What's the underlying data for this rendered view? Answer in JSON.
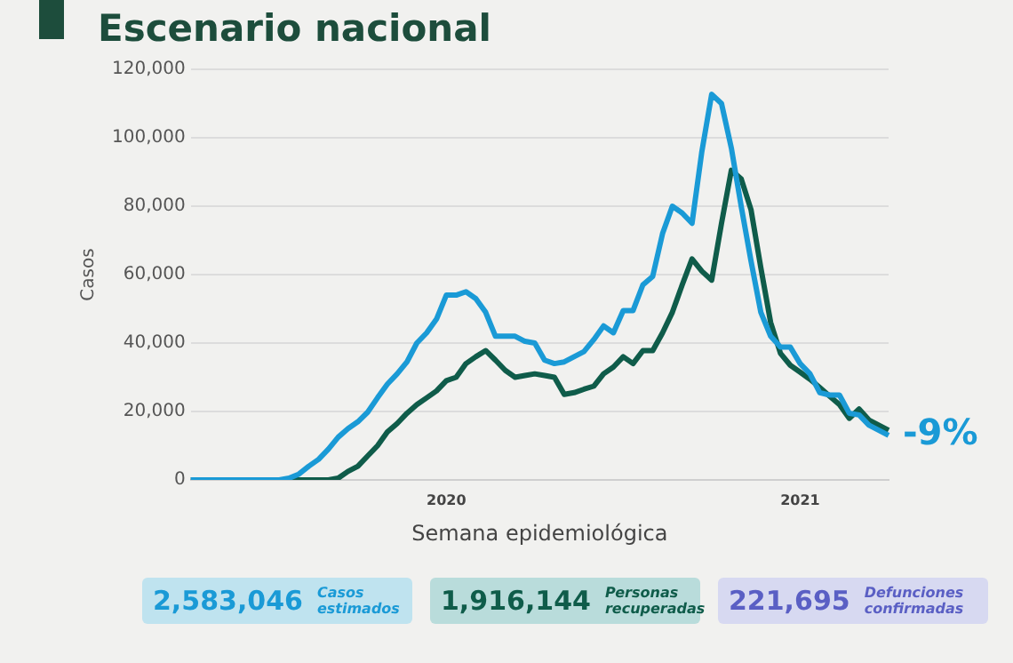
{
  "chart_data": {
    "type": "line",
    "title": "Escenario nacional",
    "xlabel": "Semana epidemiológica",
    "ylabel": "Casos",
    "categories": [
      null,
      null,
      null,
      null,
      null,
      null,
      null,
      null,
      null,
      null,
      null,
      null,
      null,
      null,
      null,
      null,
      null,
      null,
      null,
      null,
      null,
      null,
      null,
      null,
      null,
      null,
      "2020",
      null,
      null,
      null,
      null,
      null,
      null,
      null,
      null,
      null,
      null,
      null,
      null,
      null,
      null,
      null,
      null,
      null,
      null,
      null,
      null,
      null,
      null,
      null,
      null,
      null,
      null,
      null,
      null,
      null,
      null,
      null,
      null,
      null,
      null,
      null,
      "2021",
      null,
      null,
      null,
      null,
      null,
      null,
      null,
      null,
      null
    ],
    "series": [
      {
        "color": "#1a9ad6",
        "values": [
          0,
          0,
          0,
          0,
          0,
          0,
          0,
          0,
          0,
          0,
          500,
          1700,
          4000,
          6000,
          9000,
          12500,
          15000,
          17000,
          19800,
          24000,
          28000,
          31000,
          34500,
          40000,
          43000,
          47000,
          54000,
          54000,
          55000,
          53000,
          49000,
          42000,
          42000,
          42000,
          40500,
          40000,
          35000,
          34000,
          34500,
          36000,
          37500,
          41000,
          45000,
          43000,
          49500,
          49500,
          57000,
          59500,
          72000,
          80000,
          78000,
          75000,
          96000,
          112700,
          110000,
          97000,
          80000,
          64000,
          49000,
          42000,
          38800,
          38800,
          34000,
          31000,
          25500,
          24800,
          24800,
          19500,
          19000,
          16000,
          14500,
          13000
        ]
      },
      {
        "color": "#0f5c4a",
        "values": [
          0,
          0,
          0,
          0,
          0,
          0,
          0,
          0,
          0,
          0,
          0,
          0,
          0,
          0,
          0,
          500,
          2500,
          4000,
          7000,
          10000,
          14000,
          16500,
          19500,
          22000,
          24000,
          26000,
          29000,
          30000,
          34000,
          36000,
          37800,
          35000,
          32000,
          30000,
          30500,
          31000,
          30500,
          30000,
          25000,
          25500,
          26500,
          27400,
          31000,
          33000,
          36000,
          34000,
          37800,
          37800,
          43000,
          49000,
          57000,
          64600,
          61000,
          58400,
          75000,
          90500,
          88000,
          79000,
          62000,
          46000,
          37000,
          33500,
          31500,
          29400,
          27000,
          24500,
          22000,
          18000,
          20700,
          17500,
          16000,
          14500
        ]
      }
    ],
    "ylim": [
      0,
      120000
    ],
    "yticks": [
      0,
      {
        "value": 20000,
        "label": "20,000"
      },
      {
        "value": 40000,
        "label": "40,000"
      },
      {
        "value": 60000,
        "label": "60,000"
      },
      {
        "value": 80000,
        "label": "80,000"
      },
      {
        "value": 100000,
        "label": "100,000"
      },
      {
        "value": 120000,
        "label": "120,000"
      }
    ],
    "grid": "y",
    "legend": false,
    "marker": "none",
    "line_style": "solid",
    "annotations": [
      "-9%",
      "2,583,046 Casos estimados",
      "1,916,144 Personas recuperadas",
      "221,695 Defunciones confirmadas"
    ]
  }
}
